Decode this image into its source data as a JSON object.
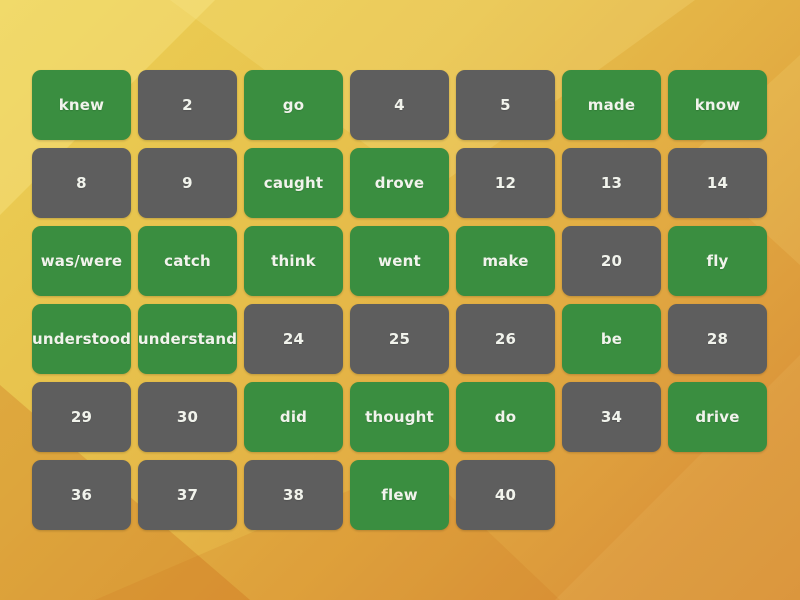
{
  "board": {
    "columns": 7,
    "tiles": [
      {
        "label": "knew",
        "kind": "word"
      },
      {
        "label": "2",
        "kind": "number"
      },
      {
        "label": "go",
        "kind": "word"
      },
      {
        "label": "4",
        "kind": "number"
      },
      {
        "label": "5",
        "kind": "number"
      },
      {
        "label": "made",
        "kind": "word"
      },
      {
        "label": "know",
        "kind": "word"
      },
      {
        "label": "8",
        "kind": "number"
      },
      {
        "label": "9",
        "kind": "number"
      },
      {
        "label": "caught",
        "kind": "word"
      },
      {
        "label": "drove",
        "kind": "word"
      },
      {
        "label": "12",
        "kind": "number"
      },
      {
        "label": "13",
        "kind": "number"
      },
      {
        "label": "14",
        "kind": "number"
      },
      {
        "label": "was/were",
        "kind": "word"
      },
      {
        "label": "catch",
        "kind": "word"
      },
      {
        "label": "think",
        "kind": "word"
      },
      {
        "label": "went",
        "kind": "word"
      },
      {
        "label": "make",
        "kind": "word"
      },
      {
        "label": "20",
        "kind": "number"
      },
      {
        "label": "fly",
        "kind": "word"
      },
      {
        "label": "understood",
        "kind": "word"
      },
      {
        "label": "understand",
        "kind": "word"
      },
      {
        "label": "24",
        "kind": "number"
      },
      {
        "label": "25",
        "kind": "number"
      },
      {
        "label": "26",
        "kind": "number"
      },
      {
        "label": "be",
        "kind": "word"
      },
      {
        "label": "28",
        "kind": "number"
      },
      {
        "label": "29",
        "kind": "number"
      },
      {
        "label": "30",
        "kind": "number"
      },
      {
        "label": "did",
        "kind": "word"
      },
      {
        "label": "thought",
        "kind": "word"
      },
      {
        "label": "do",
        "kind": "word"
      },
      {
        "label": "34",
        "kind": "number"
      },
      {
        "label": "drive",
        "kind": "word"
      },
      {
        "label": "36",
        "kind": "number"
      },
      {
        "label": "37",
        "kind": "number"
      },
      {
        "label": "38",
        "kind": "number"
      },
      {
        "label": "flew",
        "kind": "word"
      },
      {
        "label": "40",
        "kind": "number"
      }
    ]
  },
  "colors": {
    "word_tile": "#3a8e40",
    "number_tile": "#5e5e5e",
    "tile_text": "#f1f3ec",
    "background_top_left": "#ecd055",
    "background_bottom_right": "#d78e35"
  }
}
